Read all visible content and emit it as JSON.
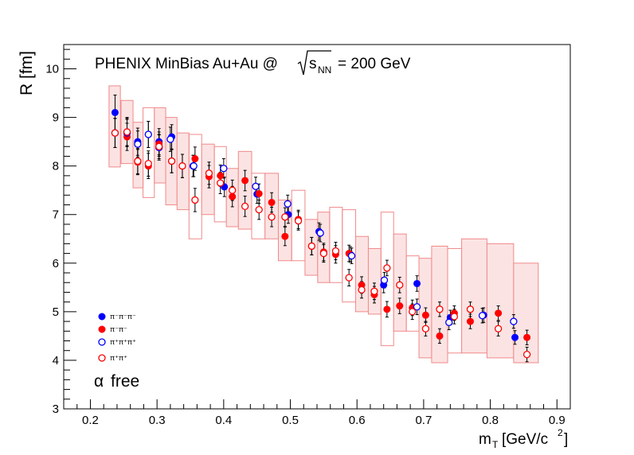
{
  "chart_data": {
    "type": "scatter",
    "title_main": "PHENIX MinBias Au+Au @",
    "title_sqrt_var": "s",
    "title_sqrt_sub": "NN",
    "title_energy": "= 200 GeV",
    "annotation_greek": "α",
    "annotation_text": "free",
    "xlabel_main": "m",
    "xlabel_sub": "T",
    "xlabel_units": "[GeV/c",
    "xlabel_units_sup": "2",
    "xlabel_close": "]",
    "ylabel": "R [fm]",
    "xlim": [
      0.16,
      0.92
    ],
    "ylim": [
      3,
      10.5
    ],
    "xticks": [
      {
        "v": 0.2,
        "label": "0.2"
      },
      {
        "v": 0.3,
        "label": "0.3"
      },
      {
        "v": 0.4,
        "label": "0.4"
      },
      {
        "v": 0.5,
        "label": "0.5"
      },
      {
        "v": 0.6,
        "label": "0.6"
      },
      {
        "v": 0.7,
        "label": "0.7"
      },
      {
        "v": 0.8,
        "label": "0.8"
      },
      {
        "v": 0.9,
        "label": "0.9"
      }
    ],
    "yticks": [
      {
        "v": 3,
        "label": "3"
      },
      {
        "v": 4,
        "label": "4"
      },
      {
        "v": 5,
        "label": "5"
      },
      {
        "v": 6,
        "label": "6"
      },
      {
        "v": 7,
        "label": "7"
      },
      {
        "v": 8,
        "label": "8"
      },
      {
        "v": 9,
        "label": "9"
      },
      {
        "v": 10,
        "label": "10"
      }
    ],
    "grid": false,
    "legend_position": "lower-left",
    "series": [
      {
        "name": "π⁻π⁻π⁻",
        "style": "filled",
        "color": "#0000ff",
        "x": [
          0.237,
          0.255,
          0.271,
          0.287,
          0.303,
          0.322,
          0.354,
          0.401,
          0.45,
          0.497,
          0.543,
          0.59,
          0.64,
          0.69,
          0.74,
          0.79,
          0.837
        ],
        "y": [
          9.1,
          8.7,
          8.5,
          8.65,
          8.5,
          8.6,
          8.0,
          7.57,
          7.42,
          7.0,
          6.65,
          6.18,
          5.55,
          5.58,
          4.88,
          4.93,
          4.47
        ],
        "err": [
          0.36,
          0.3,
          0.28,
          0.27,
          0.27,
          0.25,
          0.22,
          0.2,
          0.19,
          0.18,
          0.18,
          0.16,
          0.16,
          0.16,
          0.15,
          0.15,
          0.14
        ]
      },
      {
        "name": "π⁻π⁻",
        "style": "filled",
        "color": "#ff0000",
        "x": [
          0.237,
          0.255,
          0.271,
          0.287,
          0.303,
          0.322,
          0.338,
          0.357,
          0.378,
          0.395,
          0.413,
          0.432,
          0.453,
          0.472,
          0.492,
          0.512,
          0.532,
          0.55,
          0.568,
          0.588,
          0.607,
          0.626,
          0.645,
          0.664,
          0.683,
          0.703,
          0.724,
          0.746,
          0.77,
          0.812,
          0.855
        ],
        "y": [
          8.68,
          8.6,
          8.08,
          8.0,
          8.45,
          8.1,
          8.0,
          8.15,
          7.78,
          7.8,
          7.37,
          7.7,
          7.43,
          7.25,
          6.55,
          6.9,
          6.35,
          6.23,
          6.18,
          6.2,
          5.55,
          5.35,
          5.05,
          5.12,
          5.08,
          4.93,
          4.5,
          4.97,
          4.8,
          4.97,
          4.47
        ],
        "err": [
          0.3,
          0.28,
          0.26,
          0.26,
          0.25,
          0.24,
          0.24,
          0.24,
          0.23,
          0.22,
          0.21,
          0.21,
          0.2,
          0.2,
          0.19,
          0.19,
          0.18,
          0.18,
          0.18,
          0.17,
          0.17,
          0.17,
          0.16,
          0.16,
          0.16,
          0.15,
          0.15,
          0.15,
          0.15,
          0.15,
          0.15
        ]
      },
      {
        "name": "π⁺π⁺π⁺",
        "style": "open",
        "color": "#0000ff",
        "x": [
          0.237,
          0.255,
          0.271,
          0.287,
          0.303,
          0.32,
          0.355,
          0.4,
          0.448,
          0.496,
          0.545,
          0.592,
          0.641,
          0.69,
          0.738,
          0.788,
          0.835
        ],
        "y": [
          8.68,
          8.68,
          8.45,
          8.65,
          8.38,
          8.55,
          8.0,
          7.95,
          7.58,
          7.22,
          6.62,
          6.15,
          5.65,
          5.1,
          4.78,
          4.92,
          4.8
        ],
        "err": [
          0.3,
          0.28,
          0.27,
          0.27,
          0.26,
          0.25,
          0.22,
          0.2,
          0.19,
          0.18,
          0.18,
          0.16,
          0.16,
          0.16,
          0.15,
          0.15,
          0.14
        ]
      },
      {
        "name": "π⁺π⁺",
        "style": "open",
        "color": "#ff0000",
        "x": [
          0.237,
          0.255,
          0.271,
          0.287,
          0.303,
          0.322,
          0.338,
          0.357,
          0.378,
          0.395,
          0.413,
          0.432,
          0.453,
          0.472,
          0.492,
          0.512,
          0.532,
          0.55,
          0.568,
          0.588,
          0.607,
          0.626,
          0.645,
          0.664,
          0.683,
          0.703,
          0.724,
          0.746,
          0.77,
          0.812,
          0.855
        ],
        "y": [
          8.68,
          8.7,
          8.1,
          8.05,
          8.4,
          8.1,
          8.0,
          7.3,
          7.85,
          7.65,
          7.5,
          7.17,
          7.1,
          6.95,
          6.95,
          6.87,
          6.35,
          6.2,
          6.25,
          5.7,
          5.45,
          5.42,
          5.9,
          5.55,
          5.0,
          4.65,
          5.05,
          4.9,
          5.05,
          4.65,
          4.12
        ],
        "err": [
          0.3,
          0.28,
          0.26,
          0.26,
          0.25,
          0.24,
          0.24,
          0.24,
          0.23,
          0.22,
          0.21,
          0.21,
          0.2,
          0.2,
          0.19,
          0.19,
          0.18,
          0.18,
          0.18,
          0.17,
          0.17,
          0.17,
          0.16,
          0.16,
          0.16,
          0.15,
          0.15,
          0.15,
          0.15,
          0.15,
          0.15
        ]
      }
    ],
    "systematic_boxes": [
      {
        "x0": 0.228,
        "x1": 0.245,
        "y0": 7.98,
        "y1": 9.65,
        "filled": true
      },
      {
        "x0": 0.246,
        "x1": 0.264,
        "y0": 8.05,
        "y1": 9.35,
        "filled": true
      },
      {
        "x0": 0.264,
        "x1": 0.279,
        "y0": 7.55,
        "y1": 8.9,
        "filled": true
      },
      {
        "x0": 0.279,
        "x1": 0.296,
        "y0": 7.35,
        "y1": 9.2,
        "filled": false
      },
      {
        "x0": 0.296,
        "x1": 0.313,
        "y0": 7.65,
        "y1": 9.2,
        "filled": true
      },
      {
        "x0": 0.313,
        "x1": 0.33,
        "y0": 7.2,
        "y1": 9.0,
        "filled": true
      },
      {
        "x0": 0.33,
        "x1": 0.348,
        "y0": 7.1,
        "y1": 8.68,
        "filled": true
      },
      {
        "x0": 0.348,
        "x1": 0.367,
        "y0": 6.5,
        "y1": 8.65,
        "filled": false
      },
      {
        "x0": 0.367,
        "x1": 0.386,
        "y0": 7.0,
        "y1": 8.45,
        "filled": true
      },
      {
        "x0": 0.386,
        "x1": 0.404,
        "y0": 6.85,
        "y1": 8.4,
        "filled": false
      },
      {
        "x0": 0.404,
        "x1": 0.422,
        "y0": 6.75,
        "y1": 7.95,
        "filled": true
      },
      {
        "x0": 0.422,
        "x1": 0.442,
        "y0": 6.7,
        "y1": 8.3,
        "filled": true
      },
      {
        "x0": 0.442,
        "x1": 0.462,
        "y0": 6.5,
        "y1": 7.85,
        "filled": false
      },
      {
        "x0": 0.462,
        "x1": 0.482,
        "y0": 6.5,
        "y1": 7.85,
        "filled": true
      },
      {
        "x0": 0.482,
        "x1": 0.502,
        "y0": 6.05,
        "y1": 7.3,
        "filled": true
      },
      {
        "x0": 0.502,
        "x1": 0.522,
        "y0": 6.05,
        "y1": 7.5,
        "filled": false
      },
      {
        "x0": 0.522,
        "x1": 0.541,
        "y0": 5.75,
        "y1": 6.9,
        "filled": true
      },
      {
        "x0": 0.541,
        "x1": 0.559,
        "y0": 5.6,
        "y1": 7.05,
        "filled": true
      },
      {
        "x0": 0.559,
        "x1": 0.578,
        "y0": 5.6,
        "y1": 7.15,
        "filled": false
      },
      {
        "x0": 0.578,
        "x1": 0.598,
        "y0": 5.2,
        "y1": 7.1,
        "filled": false
      },
      {
        "x0": 0.598,
        "x1": 0.617,
        "y0": 5.0,
        "y1": 6.55,
        "filled": true
      },
      {
        "x0": 0.617,
        "x1": 0.636,
        "y0": 4.95,
        "y1": 6.3,
        "filled": true
      },
      {
        "x0": 0.636,
        "x1": 0.655,
        "y0": 4.3,
        "y1": 7.05,
        "filled": false
      },
      {
        "x0": 0.655,
        "x1": 0.674,
        "y0": 4.6,
        "y1": 6.6,
        "filled": true
      },
      {
        "x0": 0.674,
        "x1": 0.693,
        "y0": 4.6,
        "y1": 6.15,
        "filled": false
      },
      {
        "x0": 0.693,
        "x1": 0.712,
        "y0": 4.05,
        "y1": 6.1,
        "filled": true
      },
      {
        "x0": 0.712,
        "x1": 0.736,
        "y0": 3.95,
        "y1": 6.35,
        "filled": true
      },
      {
        "x0": 0.736,
        "x1": 0.757,
        "y0": 4.15,
        "y1": 6.3,
        "filled": false
      },
      {
        "x0": 0.757,
        "x1": 0.795,
        "y0": 4.15,
        "y1": 6.5,
        "filled": true
      },
      {
        "x0": 0.795,
        "x1": 0.835,
        "y0": 4.05,
        "y1": 6.4,
        "filled": true
      },
      {
        "x0": 0.835,
        "x1": 0.872,
        "y0": 3.95,
        "y1": 6.0,
        "filled": true
      }
    ]
  }
}
